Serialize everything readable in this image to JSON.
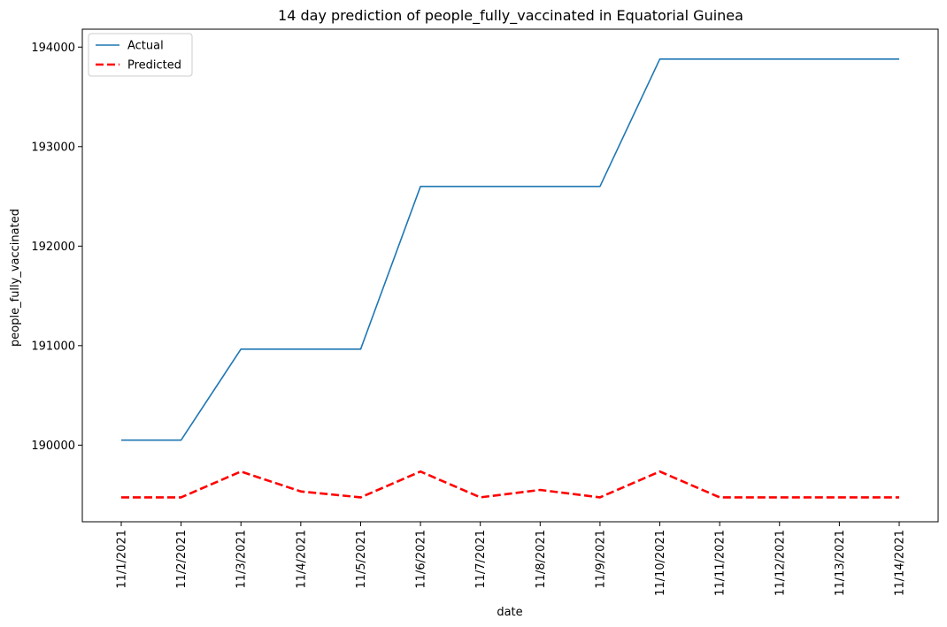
{
  "chart_data": {
    "type": "line",
    "title": "14 day prediction of people_fully_vaccinated in Equatorial Guinea",
    "xlabel": "date",
    "ylabel": "people_fully_vaccinated",
    "categories": [
      "11/1/2021",
      "11/2/2021",
      "11/3/2021",
      "11/4/2021",
      "11/5/2021",
      "11/6/2021",
      "11/7/2021",
      "11/8/2021",
      "11/9/2021",
      "11/10/2021",
      "11/11/2021",
      "11/12/2021",
      "11/13/2021",
      "11/14/2021"
    ],
    "yticks": [
      190000,
      191000,
      192000,
      193000,
      194000
    ],
    "ylim": [
      189230,
      194180
    ],
    "grid": false,
    "legend": "upper-left",
    "series": [
      {
        "name": "Actual",
        "color": "#1f77b4",
        "style": "solid",
        "values": [
          190050,
          190050,
          190965,
          190965,
          190965,
          192600,
          192600,
          192600,
          192600,
          193880,
          193880,
          193880,
          193880,
          193880
        ]
      },
      {
        "name": "Predicted",
        "color": "#ff0000",
        "style": "dashed",
        "values": [
          189475,
          189475,
          189735,
          189535,
          189475,
          189735,
          189475,
          189550,
          189475,
          189735,
          189475,
          189475,
          189475,
          189475
        ]
      }
    ]
  }
}
